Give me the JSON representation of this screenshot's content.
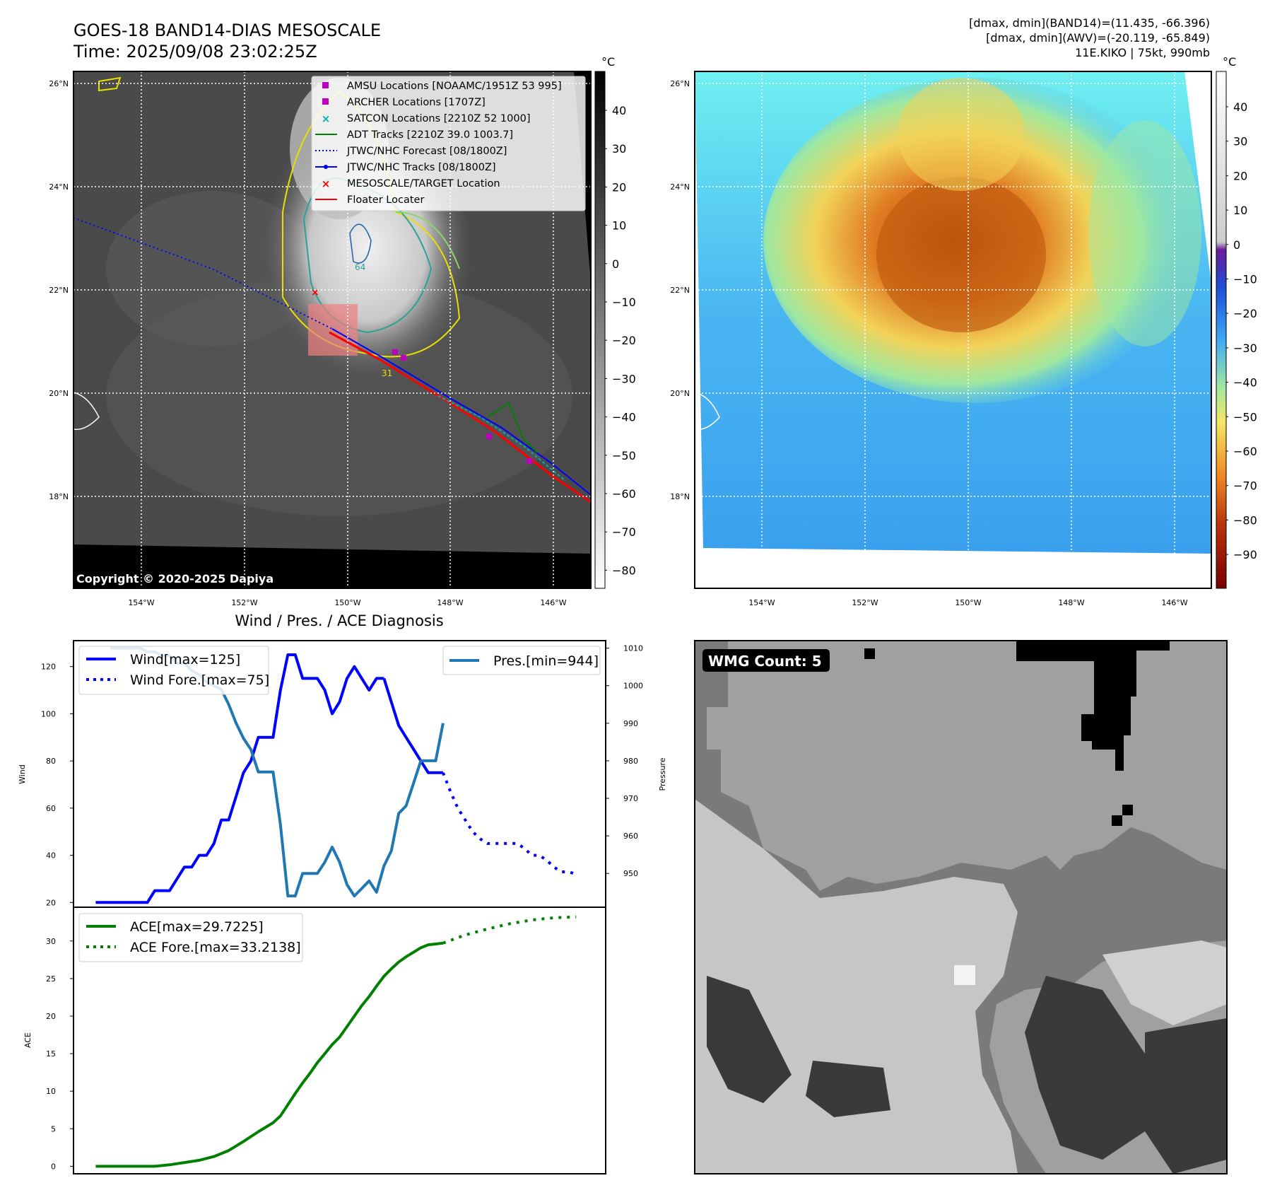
{
  "header": {
    "title": "GOES-18 BAND14-DIAS MESOSCALE",
    "time": "Time: 2025/09/08 23:02:25Z",
    "info_line1": "[dmax, dmin](BAND14)=(11.435, -66.396)",
    "info_line2": "[dmax, dmin](AWV)=(-20.119, -65.849)",
    "info_line3": "11E.KIKO | 75kt, 990mb"
  },
  "map": {
    "lat_labels": [
      "26°N",
      "24°N",
      "22°N",
      "20°N",
      "18°N"
    ],
    "lon_labels": [
      "154°W",
      "152°W",
      "150°W",
      "148°W",
      "146°W"
    ],
    "copyright": "Copyright © 2020-2025 Dapiya",
    "contour_label_a": "64",
    "contour_label_b": "31",
    "legend": [
      {
        "label": "AMSU Locations [NOAAMC/1951Z 53 995]",
        "color": "#c000c0",
        "marker": "square"
      },
      {
        "label": "ARCHER Locations [1707Z]",
        "color": "#c000c0",
        "marker": "square"
      },
      {
        "label": "SATCON Locations [2210Z 52 1000]",
        "color": "#00b0b0",
        "marker": "x"
      },
      {
        "label": "ADT Tracks [2210Z 39.0 1003.7]",
        "color": "#008000",
        "marker": "line"
      },
      {
        "label": "JTWC/NHC Forecast [08/1800Z]",
        "color": "#0000ff",
        "marker": "dotted"
      },
      {
        "label": "JTWC/NHC Tracks [08/1800Z]",
        "color": "#0000ff",
        "marker": "line-dot"
      },
      {
        "label": "MESOSCALE/TARGET Location",
        "color": "#ff0000",
        "marker": "x"
      },
      {
        "label": "Floater Locater",
        "color": "#ff0000",
        "marker": "line"
      }
    ]
  },
  "colorbar_ir": {
    "unit": "°C",
    "ticks": [
      "40",
      "30",
      "20",
      "10",
      "0",
      "−10",
      "−20",
      "−30",
      "−40",
      "−50",
      "−60",
      "−70",
      "−80"
    ]
  },
  "colorbar_wv": {
    "unit": "°C",
    "ticks": [
      "40",
      "30",
      "20",
      "10",
      "0",
      "−10",
      "−20",
      "−30",
      "−40",
      "−50",
      "−60",
      "−70",
      "−80",
      "−90"
    ]
  },
  "wmg": {
    "label": "WMG Count: 5"
  },
  "colors": {
    "wind": "#0000ff",
    "pressure": "#1f77b4",
    "ace": "#008000",
    "target": "#ff0000"
  },
  "chart_data": [
    {
      "type": "line",
      "title": "Wind / Pres. / ACE Diagnosis",
      "ylabel": "Wind",
      "y2label": "Pressure",
      "ylim": [
        18,
        131
      ],
      "y2lim": [
        941,
        1012
      ],
      "yticks": [
        20,
        40,
        60,
        80,
        100,
        120
      ],
      "y2ticks": [
        950,
        960,
        970,
        980,
        990,
        1000,
        1010
      ],
      "legend_left": "top-left",
      "legend_right": "top-right",
      "series": [
        {
          "name": "Wind[max=125]",
          "axis": "left",
          "style": "solid",
          "x": [
            0,
            1,
            2,
            3,
            4,
            5,
            6,
            7,
            8,
            9,
            10,
            11,
            12,
            13,
            14,
            15,
            16,
            17,
            18,
            19,
            20,
            21,
            22,
            23,
            24,
            25,
            26,
            27,
            28,
            29,
            30,
            31,
            32,
            33,
            34,
            35,
            36,
            37,
            38,
            39
          ],
          "values": [
            20,
            20,
            20,
            20,
            20,
            20,
            20,
            20,
            25,
            25,
            25,
            30,
            35,
            35,
            40,
            40,
            45,
            55,
            55,
            65,
            75,
            80,
            90,
            90,
            90,
            110,
            125,
            125,
            115,
            115,
            115,
            110,
            100,
            105,
            115,
            120,
            115,
            110,
            115,
            115
          ]
        },
        {
          "name": "",
          "axis": "left",
          "style": "solid",
          "x": [
            39,
            40,
            41,
            42,
            43,
            44,
            45,
            46,
            47
          ],
          "values": [
            115,
            105,
            95,
            90,
            85,
            80,
            75,
            75,
            75
          ]
        },
        {
          "name": "Wind Fore.[max=75]",
          "axis": "left",
          "style": "dotted",
          "x": [
            47,
            48,
            49,
            50,
            51,
            52,
            53,
            54,
            55,
            56,
            57,
            58,
            59,
            60,
            61,
            62,
            63,
            64,
            65
          ],
          "values": [
            75,
            67,
            60,
            55,
            50,
            47,
            45,
            45,
            45,
            45,
            45,
            43,
            40,
            40,
            38,
            35,
            33,
            33,
            32
          ]
        },
        {
          "name": "Pres.[min=944]",
          "axis": "right",
          "style": "solid",
          "x": [
            2,
            6,
            7,
            8,
            9,
            10,
            11,
            12,
            13,
            14,
            15,
            16,
            17,
            18,
            19,
            20,
            21,
            22,
            23,
            24,
            25,
            26,
            27,
            28,
            29,
            30,
            31,
            32,
            33,
            34,
            35,
            36,
            37,
            38,
            39,
            40,
            41,
            42,
            43,
            44,
            45,
            46,
            47
          ],
          "values": [
            1010,
            1010,
            1009,
            1009,
            1008,
            1008,
            1006,
            1006,
            1004,
            1003,
            1001,
            1000,
            999,
            995,
            990,
            986,
            983,
            977,
            977,
            977,
            963,
            944,
            944,
            950,
            950,
            950,
            953,
            957,
            953,
            947,
            944,
            946,
            948,
            945,
            952,
            956,
            966,
            968,
            974,
            980,
            980,
            980,
            990
          ]
        },
        {
          "name": "ACE[max=29.7225]",
          "axis": "ace",
          "style": "solid",
          "x": [
            0,
            4,
            8,
            10,
            12,
            14,
            16,
            18,
            20,
            22,
            24,
            25,
            26,
            27,
            28,
            29,
            30,
            31,
            32,
            33,
            34,
            35,
            36,
            37,
            38,
            39,
            40,
            41,
            42,
            43,
            44,
            45,
            46,
            47
          ],
          "values": [
            0,
            0,
            0,
            0.2,
            0.5,
            0.8,
            1.3,
            2.1,
            3.3,
            4.6,
            5.8,
            6.7,
            8.2,
            9.7,
            11.1,
            12.4,
            13.8,
            15,
            16.2,
            17.2,
            18.6,
            20,
            21.4,
            22.6,
            24,
            25.3,
            26.3,
            27.2,
            27.9,
            28.5,
            29.1,
            29.5,
            29.6,
            29.72
          ]
        },
        {
          "name": "ACE Fore.[max=33.2138]",
          "axis": "ace",
          "style": "dotted",
          "x": [
            47,
            50,
            53,
            56,
            59,
            62,
            65
          ],
          "values": [
            29.72,
            30.8,
            31.6,
            32.3,
            32.8,
            33.1,
            33.21
          ]
        }
      ],
      "ace_ylabel": "ACE",
      "ace_ylim": [
        -1,
        34.5
      ],
      "ace_yticks": [
        0,
        5,
        10,
        15,
        20,
        25,
        30
      ]
    }
  ]
}
